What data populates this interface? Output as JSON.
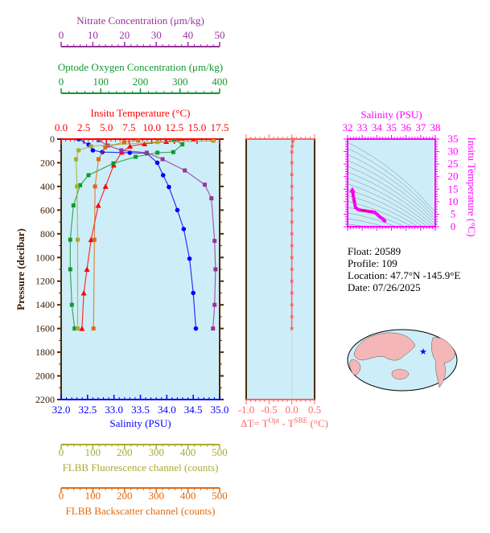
{
  "colors": {
    "plot_bg": "#cdeef8",
    "frame": "#4a2a0a",
    "salinity": "#0000ff",
    "temperature": "#ff0000",
    "oxygen": "#119933",
    "nitrate": "#993399",
    "fluorescence": "#aaaa33",
    "backscatter": "#e06a10",
    "delta_t": "#ff6666",
    "ts": "#ff00ff"
  },
  "info": {
    "float": "Float:  20589",
    "profile": "Profile:  109",
    "location": "Location:  47.7°N  -145.9°E",
    "date": "Date:  07/26/2025"
  },
  "chart_data": [
    {
      "type": "line",
      "title": "",
      "ylabel": "Pressure (decibar)",
      "ylim": [
        2200,
        0
      ],
      "yticks": [
        "0",
        "200",
        "400",
        "600",
        "800",
        "1000",
        "1200",
        "1400",
        "1600",
        "1800",
        "2000",
        "2200"
      ],
      "grid": false,
      "axes": [
        {
          "key": "nitrate",
          "label": "Nitrate Concentration (μm/kg)",
          "range": [
            0,
            50
          ],
          "ticks": [
            "0",
            "10",
            "20",
            "30",
            "40",
            "50"
          ],
          "position": "top"
        },
        {
          "key": "oxygen",
          "label": "Optode Oxygen Concentration (μm/kg)",
          "range": [
            0,
            400
          ],
          "ticks": [
            "0",
            "100",
            "200",
            "300",
            "400"
          ],
          "position": "top"
        },
        {
          "key": "temperature",
          "label": "Insitu Temperature (°C)",
          "range": [
            0,
            17.5
          ],
          "ticks": [
            "0.0",
            "2.5",
            "5.0",
            "7.5",
            "10.0",
            "12.5",
            "15.0",
            "17.5"
          ],
          "position": "top"
        },
        {
          "key": "salinity",
          "label": "Salinity (PSU)",
          "range": [
            32,
            35
          ],
          "ticks": [
            "32.0",
            "32.5",
            "33.0",
            "33.5",
            "34.0",
            "34.5",
            "35.0"
          ],
          "position": "bottom"
        },
        {
          "key": "fluorescence",
          "label": "FLBB Fluorescence channel (counts)",
          "range": [
            0,
            500
          ],
          "ticks": [
            "0",
            "100",
            "200",
            "300",
            "400",
            "500"
          ],
          "position": "bottom"
        },
        {
          "key": "backscatter",
          "label": "FLBB Backscatter channel (counts)",
          "range": [
            0,
            500
          ],
          "ticks": [
            "0",
            "100",
            "200",
            "300",
            "400",
            "500"
          ],
          "position": "bottom"
        }
      ],
      "series": [
        {
          "key": "salinity",
          "marker": "circle",
          "points": [
            [
              32.33,
              0
            ],
            [
              32.52,
              47
            ],
            [
              32.6,
              95
            ],
            [
              32.78,
              110
            ],
            [
              33.3,
              115
            ],
            [
              33.62,
              120
            ],
            [
              33.82,
              200
            ],
            [
              33.93,
              305
            ],
            [
              34.04,
              405
            ],
            [
              34.2,
              600
            ],
            [
              34.32,
              760
            ],
            [
              34.43,
              1010
            ],
            [
              34.5,
              1300
            ],
            [
              34.55,
              1600
            ]
          ]
        },
        {
          "key": "temperature",
          "marker": "triangle",
          "points": [
            [
              14.6,
              0
            ],
            [
              11.6,
              20
            ],
            [
              9.2,
              40
            ],
            [
              7.6,
              60
            ],
            [
              6.7,
              110
            ],
            [
              5.8,
              220
            ],
            [
              4.9,
              400
            ],
            [
              4.1,
              560
            ],
            [
              3.3,
              850
            ],
            [
              2.85,
              1100
            ],
            [
              2.5,
              1300
            ],
            [
              2.3,
              1600
            ]
          ]
        },
        {
          "key": "oxygen",
          "marker": "square",
          "points": [
            [
              285,
              5
            ],
            [
              306,
              45
            ],
            [
              283,
              110
            ],
            [
              243,
              115
            ],
            [
              188,
              150
            ],
            [
              132,
              205
            ],
            [
              69,
              305
            ],
            [
              48,
              390
            ],
            [
              31,
              560
            ],
            [
              23,
              850
            ],
            [
              23,
              1100
            ],
            [
              27,
              1400
            ],
            [
              34,
              1600
            ]
          ]
        },
        {
          "key": "nitrate",
          "marker": "square",
          "points": [
            [
              11.8,
              10
            ],
            [
              14.7,
              55
            ],
            [
              19,
              95
            ],
            [
              27,
              115
            ],
            [
              32,
              170
            ],
            [
              39,
              265
            ],
            [
              45.3,
              385
            ],
            [
              47.4,
              500
            ],
            [
              48.4,
              860
            ],
            [
              48.7,
              1100
            ],
            [
              48.4,
              1400
            ],
            [
              47.9,
              1600
            ]
          ]
        },
        {
          "key": "fluorescence",
          "marker": "square",
          "points": [
            [
              480,
              15
            ],
            [
              304,
              25
            ],
            [
              94,
              60
            ],
            [
              55,
              95
            ],
            [
              47,
              170
            ],
            [
              50,
              400
            ],
            [
              52,
              850
            ],
            [
              52,
              1600
            ]
          ]
        },
        {
          "key": "backscatter",
          "marker": "square",
          "points": [
            [
              243,
              10
            ],
            [
              199,
              25
            ],
            [
              139,
              70
            ],
            [
              118,
              170
            ],
            [
              107,
              400
            ],
            [
              105,
              850
            ],
            [
              102,
              1600
            ]
          ]
        }
      ]
    },
    {
      "type": "line",
      "xlabel": "ΔT= T",
      "xlabel_sup1": "Opt",
      "xlabel_mid": " - T",
      "xlabel_sup2": "SBE",
      "xlabel_end": " (°C)",
      "xlim": [
        -1.0,
        0.5
      ],
      "xticks": [
        "-1.0",
        "-0.5",
        "0.0",
        "0.5"
      ],
      "ylim": [
        2200,
        0
      ],
      "points": [
        [
          0.03,
          0
        ],
        [
          0.02,
          20
        ],
        [
          0.01,
          60
        ],
        [
          0.0,
          110
        ],
        [
          0.0,
          200
        ],
        [
          0.0,
          300
        ],
        [
          0.0,
          400
        ],
        [
          0.0,
          500
        ],
        [
          0.0,
          600
        ],
        [
          0.0,
          700
        ],
        [
          0.0,
          800
        ],
        [
          0.0,
          900
        ],
        [
          0.0,
          1000
        ],
        [
          0.0,
          1100
        ],
        [
          0.0,
          1200
        ],
        [
          0.0,
          1300
        ],
        [
          0.0,
          1400
        ],
        [
          0.0,
          1500
        ],
        [
          0.0,
          1600
        ]
      ]
    },
    {
      "type": "scatter",
      "xlabel": "Salinity (PSU)",
      "ylabel": "Insitu Temperature (°C)",
      "xlim": [
        32,
        38
      ],
      "ylim": [
        0,
        35
      ],
      "xticks": [
        "32",
        "33",
        "34",
        "35",
        "36",
        "37",
        "38"
      ],
      "yticks": [
        "0",
        "5",
        "10",
        "15",
        "20",
        "25",
        "30",
        "35"
      ],
      "source": "salinity vs temperature from profile"
    }
  ]
}
